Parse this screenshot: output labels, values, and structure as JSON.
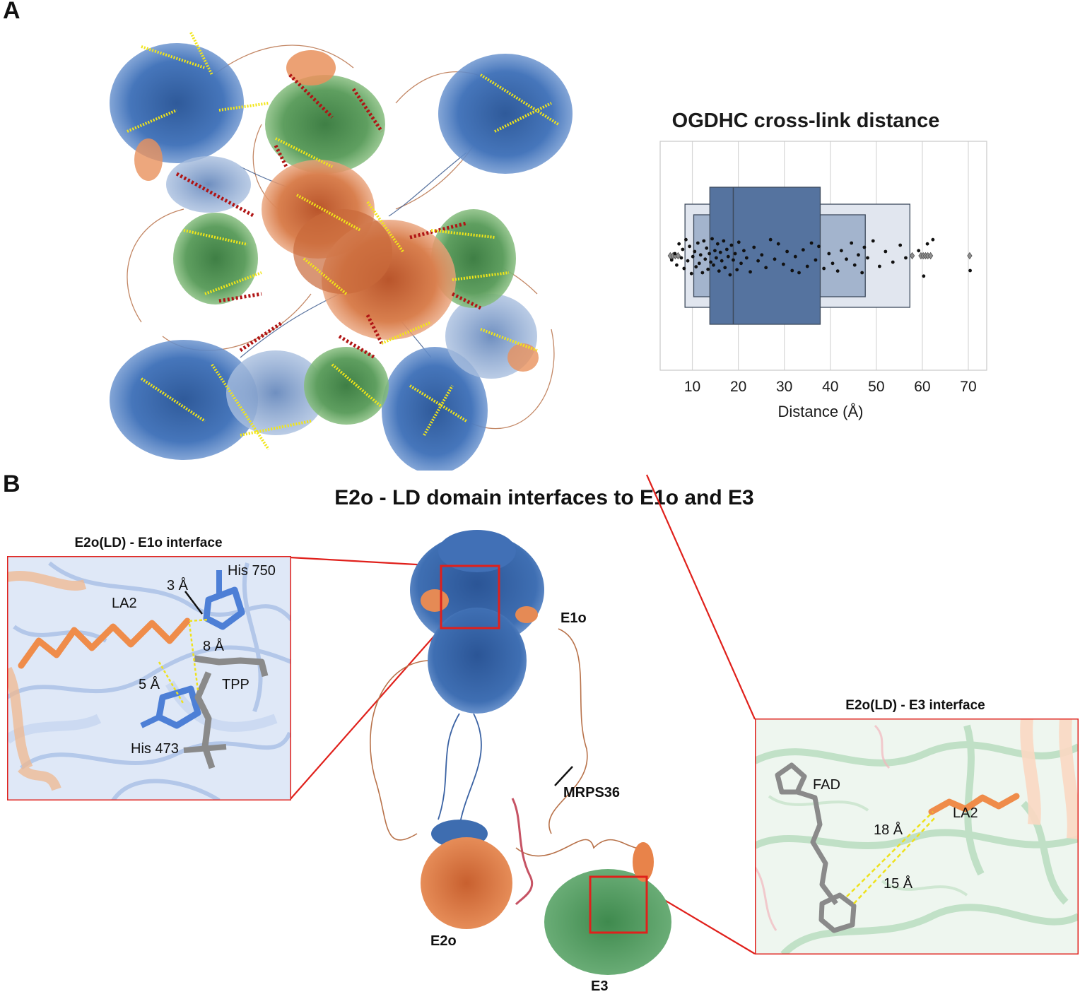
{
  "panel_a": {
    "label": "A"
  },
  "panel_b": {
    "label": "B",
    "title": "E2o - LD domain interfaces to E1o and E3",
    "inset_left": {
      "title": "E2o(LD) - E1o interface",
      "labels": {
        "his750": "His 750",
        "d3": "3 Å",
        "la2": "LA2",
        "d8": "8 Å",
        "d5": "5 Å",
        "tpp": "TPP",
        "his473": "His 473"
      }
    },
    "inset_right": {
      "title": "E2o(LD) - E3 interface",
      "labels": {
        "fad": "FAD",
        "la2": "LA2",
        "d18": "18 Å",
        "d15": "15 Å"
      }
    },
    "molecules": {
      "e1o": "E1o",
      "e2o": "E2o",
      "e3": "E3",
      "mrps36": "MRPS36"
    }
  },
  "colors": {
    "e1o_blue": "#3e6db0",
    "e2o_orange": "#e8834a",
    "e3_green": "#4f9a5d",
    "crosslink_yellow": "#f2e619",
    "crosslink_red": "#b01414",
    "inset_frame": "#e0201b",
    "box_dark": "#55739f",
    "box_mid": "#a3b4cd",
    "box_light": "#e1e6ef"
  },
  "chart_data": {
    "type": "boxen",
    "title": "OGDHC cross-link distance",
    "xlabel": "Distance (Å)",
    "ylabel": "",
    "xlim": [
      3,
      74
    ],
    "x_ticks": [
      10,
      20,
      30,
      40,
      50,
      60,
      70
    ],
    "grid": true,
    "median": 18.9,
    "boxes": [
      {
        "level": 1,
        "low": 13.8,
        "high": 37.8
      },
      {
        "level": 2,
        "low": 10.3,
        "high": 47.6
      },
      {
        "level": 3,
        "low": 8.4,
        "high": 57.3
      }
    ],
    "outliers": [
      5.2,
      5.8,
      6.3,
      6.9,
      57.8,
      59.7,
      60.2,
      60.7,
      61.2,
      61.8,
      70.3
    ],
    "points": [
      [
        5.5,
        0.1
      ],
      [
        6.2,
        -0.05
      ],
      [
        6.6,
        0.22
      ],
      [
        7.1,
        -0.28
      ],
      [
        7.6,
        0.05
      ],
      [
        7.9,
        -0.15
      ],
      [
        8.2,
        0.3
      ],
      [
        8.6,
        -0.38
      ],
      [
        9.0,
        0.12
      ],
      [
        9.4,
        -0.22
      ],
      [
        9.8,
        0.42
      ],
      [
        10.1,
        0.02
      ],
      [
        10.5,
        -0.1
      ],
      [
        10.8,
        0.26
      ],
      [
        11.2,
        -0.3
      ],
      [
        11.5,
        0.18
      ],
      [
        11.8,
        -0.02
      ],
      [
        12.2,
        0.4
      ],
      [
        12.5,
        -0.35
      ],
      [
        12.8,
        0.08
      ],
      [
        13.1,
        -0.18
      ],
      [
        13.4,
        0.32
      ],
      [
        13.7,
        -0.05
      ],
      [
        14.0,
        0.15
      ],
      [
        14.3,
        -0.4
      ],
      [
        14.6,
        0.22
      ],
      [
        14.9,
        -0.12
      ],
      [
        15.2,
        0.05
      ],
      [
        15.5,
        -0.28
      ],
      [
        15.8,
        0.36
      ],
      [
        16.1,
        -0.08
      ],
      [
        16.4,
        0.12
      ],
      [
        16.8,
        -0.35
      ],
      [
        17.1,
        0.28
      ],
      [
        17.5,
        -0.15
      ],
      [
        17.8,
        0.02
      ],
      [
        18.2,
        0.45
      ],
      [
        18.5,
        -0.25
      ],
      [
        18.9,
        0.1
      ],
      [
        19.3,
        -0.05
      ],
      [
        19.7,
        0.33
      ],
      [
        20.1,
        -0.32
      ],
      [
        20.6,
        0.18
      ],
      [
        21.2,
        -0.12
      ],
      [
        21.8,
        0.05
      ],
      [
        22.6,
        0.38
      ],
      [
        23.4,
        -0.2
      ],
      [
        24.3,
        0.12
      ],
      [
        25.1,
        -0.02
      ],
      [
        26.0,
        0.28
      ],
      [
        27.0,
        -0.38
      ],
      [
        27.9,
        0.08
      ],
      [
        28.7,
        -0.28
      ],
      [
        29.8,
        0.2
      ],
      [
        30.6,
        -0.1
      ],
      [
        31.7,
        0.35
      ],
      [
        32.4,
        0.02
      ],
      [
        33.2,
        0.4
      ],
      [
        34.1,
        -0.14
      ],
      [
        35.0,
        0.25
      ],
      [
        35.9,
        -0.3
      ],
      [
        36.8,
        0.1
      ],
      [
        37.5,
        -0.22
      ],
      [
        38.6,
        0.3
      ],
      [
        39.7,
        -0.05
      ],
      [
        40.5,
        0.18
      ],
      [
        41.6,
        0.36
      ],
      [
        42.4,
        -0.12
      ],
      [
        43.5,
        0.08
      ],
      [
        44.6,
        -0.3
      ],
      [
        45.3,
        0.22
      ],
      [
        46.1,
        -0.02
      ],
      [
        46.9,
        0.4
      ],
      [
        47.4,
        -0.2
      ],
      [
        48.1,
        0.05
      ],
      [
        49.3,
        -0.35
      ],
      [
        50.7,
        0.25
      ],
      [
        52.0,
        -0.1
      ],
      [
        53.6,
        0.15
      ],
      [
        55.2,
        -0.25
      ],
      [
        56.4,
        0.05
      ],
      [
        59.2,
        -0.12
      ],
      [
        60.3,
        0.48
      ],
      [
        61.1,
        -0.28
      ],
      [
        62.3,
        -0.38
      ],
      [
        70.4,
        0.35
      ]
    ]
  }
}
